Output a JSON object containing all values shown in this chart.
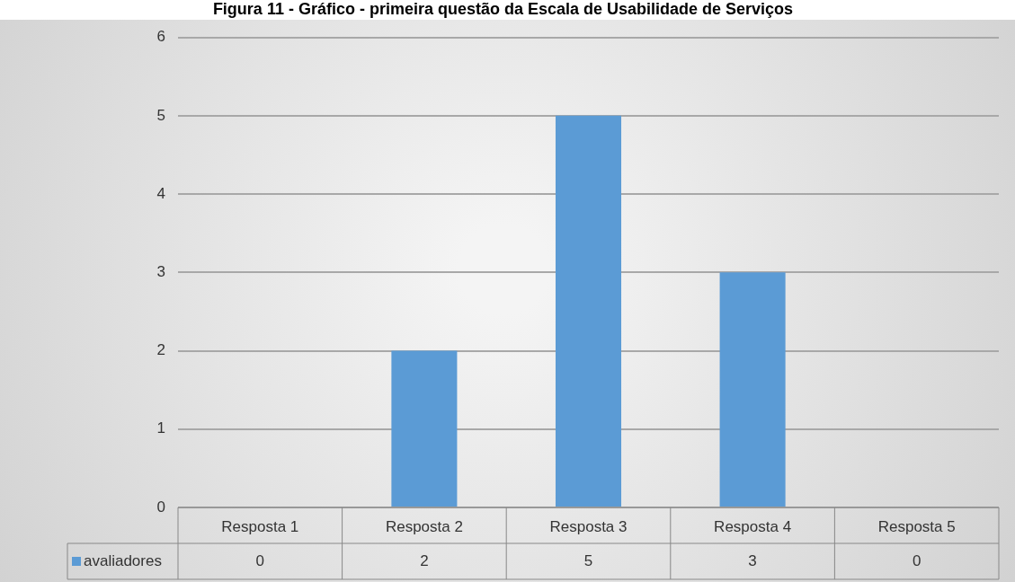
{
  "chart_data": {
    "type": "bar",
    "title": "Figura 11 - Gráfico - primeira questão da Escala de Usabilidade de Serviços",
    "categories": [
      "Resposta 1",
      "Resposta 2",
      "Resposta 3",
      "Resposta 4",
      "Resposta 5"
    ],
    "series": [
      {
        "name": "avaliadores",
        "color": "#5b9bd5",
        "values": [
          0,
          2,
          5,
          3,
          0
        ]
      }
    ],
    "ylim": [
      0,
      6
    ],
    "yticks": [
      0,
      1,
      2,
      3,
      4,
      5,
      6
    ],
    "grid": "y",
    "data_labels": true
  }
}
